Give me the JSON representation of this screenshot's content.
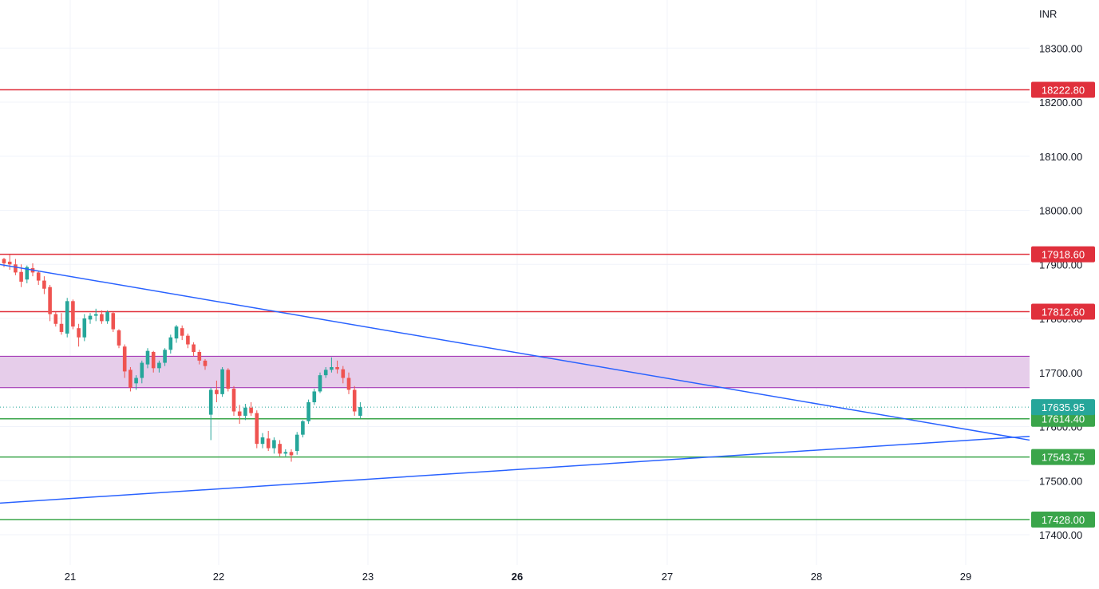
{
  "currency": "INR",
  "chart_data": {
    "type": "candlestick",
    "ylim": [
      17370,
      18400
    ],
    "y_ticks": [
      {
        "value": 18300,
        "label": "18300.00"
      },
      {
        "value": 18200,
        "label": "18200.00"
      },
      {
        "value": 18100,
        "label": "18100.00"
      },
      {
        "value": 18000,
        "label": "18000.00"
      },
      {
        "value": 17900,
        "label": "17900.00"
      },
      {
        "value": 17800,
        "label": "17800.00"
      },
      {
        "value": 17700,
        "label": "17700.00"
      },
      {
        "value": 17600,
        "label": "17600.00"
      },
      {
        "value": 17500,
        "label": "17500.00"
      },
      {
        "value": 17400,
        "label": "17400.00"
      }
    ],
    "x_ticks": [
      {
        "label": "21",
        "bold": false
      },
      {
        "label": "22",
        "bold": false
      },
      {
        "label": "23",
        "bold": false
      },
      {
        "label": "26",
        "bold": true
      },
      {
        "label": "27",
        "bold": false
      },
      {
        "label": "28",
        "bold": false
      },
      {
        "label": "29",
        "bold": false
      }
    ],
    "horizontal_levels": [
      {
        "value": 18222.8,
        "label": "18222.80",
        "color": "#e0303c"
      },
      {
        "value": 17918.6,
        "label": "17918.60",
        "color": "#e0303c"
      },
      {
        "value": 17812.6,
        "label": "17812.60",
        "color": "#e0303c"
      },
      {
        "value": 17614.4,
        "label": "17614.40",
        "color": "#3aa54a"
      },
      {
        "value": 17543.75,
        "label": "17543.75",
        "color": "#3aa54a"
      },
      {
        "value": 17428.0,
        "label": "17428.00",
        "color": "#3aa54a"
      }
    ],
    "last_price": {
      "value": 17635.95,
      "label": "17635.95",
      "color": "#26a69a"
    },
    "zone": {
      "from": 17672,
      "to": 17730,
      "color": "#e6cdea",
      "border": "#9c27b0"
    },
    "trendlines": [
      {
        "from": [
          "20 Jan",
          17925
        ],
        "to": [
          "29 Jan",
          17575
        ],
        "color": "#2962ff"
      },
      {
        "from": [
          "20 Jan",
          17449
        ],
        "to": [
          "29 Jan",
          17582
        ],
        "color": "#2962ff"
      }
    ],
    "candles": [
      [
        17910,
        17912,
        17895,
        17902
      ],
      [
        17905,
        17918,
        17890,
        17900
      ],
      [
        17900,
        17910,
        17880,
        17885
      ],
      [
        17886,
        17900,
        17858,
        17868
      ],
      [
        17872,
        17898,
        17865,
        17895
      ],
      [
        17893,
        17902,
        17878,
        17885
      ],
      [
        17885,
        17888,
        17862,
        17870
      ],
      [
        17870,
        17878,
        17845,
        17855
      ],
      [
        17858,
        17862,
        17795,
        17808
      ],
      [
        17808,
        17812,
        17785,
        17790
      ],
      [
        17790,
        17810,
        17770,
        17775
      ],
      [
        17772,
        17838,
        17765,
        17832
      ],
      [
        17832,
        17835,
        17780,
        17785
      ],
      [
        17782,
        17790,
        17748,
        17765
      ],
      [
        17765,
        17808,
        17758,
        17800
      ],
      [
        17798,
        17810,
        17790,
        17805
      ],
      [
        17805,
        17818,
        17795,
        17808
      ],
      [
        17808,
        17815,
        17790,
        17795
      ],
      [
        17795,
        17815,
        17790,
        17812
      ],
      [
        17810,
        17812,
        17775,
        17780
      ],
      [
        17778,
        17780,
        17745,
        17750
      ],
      [
        17748,
        17752,
        17690,
        17702
      ],
      [
        17705,
        17710,
        17665,
        17672
      ],
      [
        17680,
        17695,
        17668,
        17690
      ],
      [
        17690,
        17722,
        17680,
        17718
      ],
      [
        17715,
        17745,
        17708,
        17740
      ],
      [
        17738,
        17740,
        17700,
        17708
      ],
      [
        17708,
        17722,
        17700,
        17718
      ],
      [
        17718,
        17745,
        17712,
        17742
      ],
      [
        17742,
        17770,
        17735,
        17765
      ],
      [
        17763,
        17788,
        17755,
        17785
      ],
      [
        17782,
        17787,
        17760,
        17768
      ],
      [
        17768,
        17772,
        17745,
        17752
      ],
      [
        17752,
        17756,
        17730,
        17738
      ],
      [
        17738,
        17742,
        17715,
        17722
      ],
      [
        17722,
        17725,
        17705,
        17712
      ],
      [
        17622,
        17672,
        17575,
        17668
      ],
      [
        17668,
        17685,
        17645,
        17660
      ],
      [
        17660,
        17710,
        17655,
        17706
      ],
      [
        17705,
        17708,
        17665,
        17670
      ],
      [
        17670,
        17675,
        17620,
        17628
      ],
      [
        17628,
        17640,
        17605,
        17620
      ],
      [
        17620,
        17642,
        17612,
        17635
      ],
      [
        17635,
        17645,
        17620,
        17625
      ],
      [
        17625,
        17630,
        17560,
        17568
      ],
      [
        17568,
        17588,
        17560,
        17580
      ],
      [
        17578,
        17592,
        17555,
        17560
      ],
      [
        17560,
        17580,
        17550,
        17575
      ],
      [
        17568,
        17575,
        17545,
        17550
      ],
      [
        17550,
        17558,
        17545,
        17553
      ],
      [
        17553,
        17558,
        17535,
        17547
      ],
      [
        17555,
        17590,
        17548,
        17585
      ],
      [
        17585,
        17612,
        17580,
        17610
      ],
      [
        17610,
        17650,
        17605,
        17645
      ],
      [
        17645,
        17670,
        17640,
        17665
      ],
      [
        17665,
        17700,
        17662,
        17695
      ],
      [
        17695,
        17710,
        17690,
        17705
      ],
      [
        17705,
        17728,
        17700,
        17710
      ],
      [
        17710,
        17722,
        17698,
        17706
      ],
      [
        17706,
        17712,
        17680,
        17690
      ],
      [
        17690,
        17700,
        17660,
        17668
      ],
      [
        17668,
        17675,
        17620,
        17628
      ],
      [
        17620,
        17645,
        17615,
        17636
      ]
    ]
  }
}
